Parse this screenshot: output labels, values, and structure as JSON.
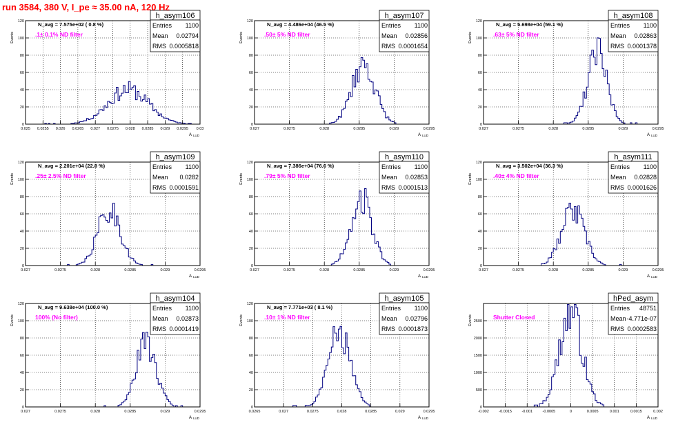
{
  "header": {
    "run_title": "run 3584,   380 V, I_pe ≈ 35.00 nA, 120 Hz"
  },
  "style": {
    "line_color": "#000080",
    "label_color": "#ff00ff",
    "title_color": "#ff0000",
    "grid": "dotted"
  },
  "chart_data": [
    {
      "type": "histogram",
      "name": "h_asym106",
      "navg": "N_avg = 7.575e+02 ( 0.8 %)",
      "filter": ".1± 0.1% ND filter",
      "stats": {
        "entries": "1100",
        "mean": "0.02794",
        "rms": "0.0005818"
      },
      "xlim": [
        0.025,
        0.03
      ],
      "ylim": [
        0,
        120
      ],
      "xticks": [
        "0.025",
        "0.0255",
        "0.026",
        "0.0265",
        "0.027",
        "0.0275",
        "0.028",
        "0.0285",
        "0.029",
        "0.0295",
        "0.03"
      ],
      "yticks": [
        "0",
        "20",
        "40",
        "60",
        "80",
        "100",
        "120"
      ],
      "xlabel": "A",
      "xlabel_sub": "LUD",
      "ylabel": "Events",
      "center": 0.02794,
      "sigma": 0.00058,
      "peak": 40,
      "seed": 11
    },
    {
      "type": "histogram",
      "name": "h_asym107",
      "navg": "N_avg = 4.486e+04 (46.5 %)",
      "filter": ".50± 5% ND filter",
      "stats": {
        "entries": "1100",
        "mean": "0.02856",
        "rms": "0.0001654"
      },
      "xlim": [
        0.027,
        0.0295
      ],
      "ylim": [
        0,
        120
      ],
      "xticks": [
        "0.027",
        "0.0275",
        "0.028",
        "0.0285",
        "0.029",
        "0.0295"
      ],
      "yticks": [
        "0",
        "20",
        "40",
        "60",
        "80",
        "100",
        "120"
      ],
      "xlabel": "A",
      "xlabel_sub": "LUD",
      "ylabel": "Events",
      "center": 0.02856,
      "sigma": 0.000165,
      "peak": 70,
      "seed": 23
    },
    {
      "type": "histogram",
      "name": "h_asym108",
      "navg": "N_avg = 5.698e+04 (59.1 %)",
      "filter": ".63± 5% ND filter",
      "stats": {
        "entries": "1100",
        "mean": "0.02863",
        "rms": "0.0001378"
      },
      "xlim": [
        0.027,
        0.0295
      ],
      "ylim": [
        0,
        120
      ],
      "xticks": [
        "0.027",
        "0.0275",
        "0.028",
        "0.0285",
        "0.029",
        "0.0295"
      ],
      "yticks": [
        "0",
        "20",
        "40",
        "60",
        "80",
        "100",
        "120"
      ],
      "xlabel": "A",
      "xlabel_sub": "LUD",
      "ylabel": "Events",
      "center": 0.02863,
      "sigma": 0.000138,
      "peak": 82,
      "seed": 37
    },
    {
      "type": "histogram",
      "name": "h_asym109",
      "navg": "N_avg = 2.201e+04 (22.8 %)",
      "filter": ".25± 2.5% ND filter",
      "stats": {
        "entries": "1100",
        "mean": "0.0282",
        "rms": "0.0001591"
      },
      "xlim": [
        0.027,
        0.0295
      ],
      "ylim": [
        0,
        120
      ],
      "xticks": [
        "0.027",
        "0.0275",
        "0.028",
        "0.0285",
        "0.029",
        "0.0295"
      ],
      "yticks": [
        "0",
        "20",
        "40",
        "60",
        "80",
        "100",
        "120"
      ],
      "xlabel": "A",
      "xlabel_sub": "LUD",
      "ylabel": "Events",
      "center": 0.0282,
      "sigma": 0.000159,
      "peak": 66,
      "seed": 41
    },
    {
      "type": "histogram",
      "name": "h_asym110",
      "navg": "N_avg = 7.386e+04 (76.6 %)",
      "filter": ".79± 5% ND filter",
      "stats": {
        "entries": "1100",
        "mean": "0.02853",
        "rms": "0.0001513"
      },
      "xlim": [
        0.027,
        0.0295
      ],
      "ylim": [
        0,
        120
      ],
      "xticks": [
        "0.027",
        "0.0275",
        "0.028",
        "0.0285",
        "0.029",
        "0.0295"
      ],
      "yticks": [
        "0",
        "20",
        "40",
        "60",
        "80",
        "100",
        "120"
      ],
      "xlabel": "A",
      "xlabel_sub": "LUD",
      "ylabel": "Events",
      "center": 0.02853,
      "sigma": 0.000151,
      "peak": 78,
      "seed": 53
    },
    {
      "type": "histogram",
      "name": "h_asym111",
      "navg": "N_avg = 3.502e+04 (36.3 %)",
      "filter": ".40± 4% ND filter",
      "stats": {
        "entries": "1100",
        "mean": "0.02828",
        "rms": "0.0001626"
      },
      "xlim": [
        0.027,
        0.0295
      ],
      "ylim": [
        0,
        120
      ],
      "xticks": [
        "0.027",
        "0.0275",
        "0.028",
        "0.0285",
        "0.029",
        "0.0295"
      ],
      "yticks": [
        "0",
        "20",
        "40",
        "60",
        "80",
        "100",
        "120"
      ],
      "xlabel": "A",
      "xlabel_sub": "LUD",
      "ylabel": "Events",
      "center": 0.02828,
      "sigma": 0.000163,
      "peak": 64,
      "seed": 67
    },
    {
      "type": "histogram",
      "name": "h_asym104",
      "navg": "N_avg = 9.638e+04 (100.0 %)",
      "filter": "100% (No filter)",
      "stats": {
        "entries": "1100",
        "mean": "0.02873",
        "rms": "0.0001419"
      },
      "xlim": [
        0.027,
        0.0295
      ],
      "ylim": [
        0,
        120
      ],
      "xticks": [
        "0.027",
        "0.0275",
        "0.028",
        "0.0285",
        "0.029",
        "0.0295"
      ],
      "yticks": [
        "0",
        "20",
        "40",
        "60",
        "80",
        "100",
        "120"
      ],
      "xlabel": "A",
      "xlabel_sub": "LUD",
      "ylabel": "Events",
      "center": 0.02873,
      "sigma": 0.000142,
      "peak": 76,
      "seed": 71
    },
    {
      "type": "histogram",
      "name": "h_asym105",
      "navg": "N_avg = 7.771e+03 ( 8.1 %)",
      "filter": ".10± 1% ND filter",
      "stats": {
        "entries": "1100",
        "mean": "0.02796",
        "rms": "0.0001873"
      },
      "xlim": [
        0.0265,
        0.0295
      ],
      "ylim": [
        0,
        120
      ],
      "xticks": [
        "0.0265",
        "0.027",
        "0.0275",
        "0.028",
        "0.0285",
        "0.029",
        "0.0295"
      ],
      "yticks": [
        "0",
        "20",
        "40",
        "60",
        "80",
        "100",
        "120"
      ],
      "xlabel": "A",
      "xlabel_sub": "LUD",
      "ylabel": "Events",
      "center": 0.02796,
      "sigma": 0.000187,
      "peak": 88,
      "seed": 83
    },
    {
      "type": "histogram",
      "name": "hPed_asym",
      "navg": "",
      "filter": "Shutter Closed",
      "stats": {
        "entries": "48751",
        "mean": "-4.771e-07",
        "rms": "0.0002583"
      },
      "xlim": [
        -0.002,
        0.002
      ],
      "ylim": [
        0,
        3000
      ],
      "xticks": [
        "-0.002",
        "-0.0015",
        "-0.001",
        "-0.0005",
        "0",
        "0.0005",
        "0.001",
        "0.0015",
        "0.002"
      ],
      "yticks": [
        "0",
        "500",
        "1000",
        "1500",
        "2000",
        "2500"
      ],
      "xlabel": "A",
      "xlabel_sub": "LUD",
      "ylabel": "Events",
      "center": 0.0,
      "sigma": 0.00026,
      "peak": 2750,
      "seed": 97
    }
  ]
}
